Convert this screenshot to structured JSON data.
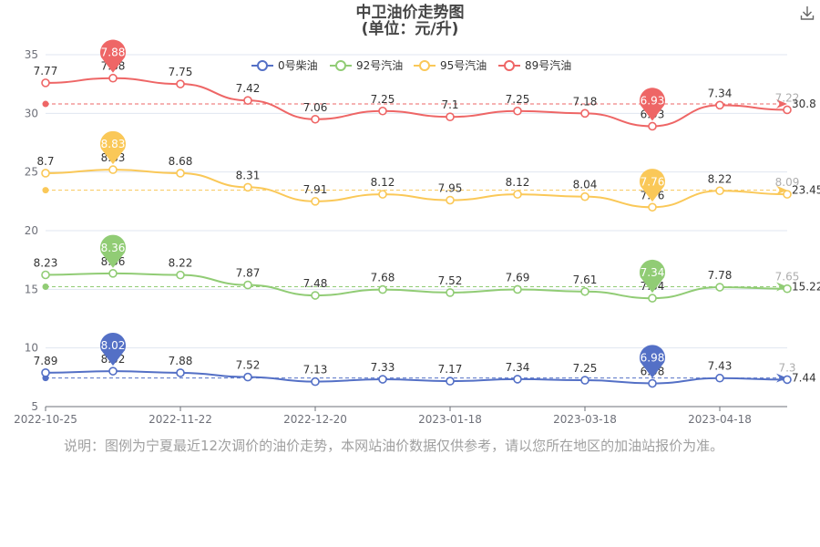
{
  "header": {
    "title": "中卫油价走势图",
    "subtitle": "(单位：元/升)"
  },
  "footer": {
    "note": "说明：图例为宁夏最近12次调价的油价走势，本网站油价数据仅供参考，请以您所在地区的加油站报价为准。"
  },
  "toolbar": {
    "download_icon": "download-icon"
  },
  "colors": {
    "series": [
      "#5470c6",
      "#91cc75",
      "#fac858",
      "#ee6666"
    ],
    "axis": "#6e7079",
    "grid": "#e0e6f1",
    "note": "#a0a0a0"
  },
  "chart_data": {
    "type": "line",
    "title": "中卫油价走势图",
    "subtitle": "(单位：元/升)",
    "xlabel": "",
    "ylabel": "",
    "ylim": [
      5,
      35
    ],
    "yticks": [
      "5",
      "10",
      "15",
      "20",
      "25",
      "30",
      "35"
    ],
    "xtick_labels": [
      {
        "index": 0,
        "label": "2022-10-25"
      },
      {
        "index": 2,
        "label": "2022-11-22"
      },
      {
        "index": 4,
        "label": "2022-12-20"
      },
      {
        "index": 6,
        "label": "2023-01-18"
      },
      {
        "index": 8,
        "label": "2023-03-18"
      },
      {
        "index": 10,
        "label": "2023-04-18"
      }
    ],
    "legend_position": "top",
    "grid": true,
    "series": [
      {
        "name": "0号柴油",
        "color": "#5470c6",
        "labels": [
          7.89,
          8.02,
          7.88,
          7.52,
          7.13,
          7.33,
          7.17,
          7.34,
          7.25,
          6.98,
          7.43,
          7.3
        ],
        "values": [
          7.89,
          8.02,
          7.88,
          7.52,
          7.13,
          7.33,
          7.17,
          7.34,
          7.25,
          6.98,
          7.43,
          7.3
        ],
        "max": {
          "index": 1,
          "label": "8.02"
        },
        "min": {
          "index": 9,
          "label": "6.98"
        },
        "average": {
          "label": "7.44",
          "value": 7.44
        }
      },
      {
        "name": "92号汽油",
        "color": "#91cc75",
        "labels": [
          8.23,
          8.36,
          8.22,
          7.87,
          7.48,
          7.68,
          7.52,
          7.69,
          7.61,
          7.34,
          7.78,
          7.65
        ],
        "values": [
          16.23,
          16.36,
          16.22,
          15.37,
          14.48,
          14.98,
          14.72,
          14.99,
          14.81,
          14.24,
          15.18,
          15.05
        ],
        "max": {
          "index": 1,
          "label": "8.36"
        },
        "min": {
          "index": 9,
          "label": "7.34"
        },
        "average": {
          "label": "15.22",
          "value": 15.22
        }
      },
      {
        "name": "95号汽油",
        "color": "#fac858",
        "labels": [
          8.7,
          8.83,
          8.68,
          8.31,
          7.91,
          8.12,
          7.95,
          8.12,
          8.04,
          7.76,
          8.22,
          8.09
        ],
        "values": [
          24.9,
          25.2,
          24.9,
          23.7,
          22.5,
          23.1,
          22.6,
          23.1,
          22.9,
          22.0,
          23.4,
          23.1
        ],
        "max": {
          "index": 1,
          "label": "8.83"
        },
        "min": {
          "index": 9,
          "label": "7.76"
        },
        "average": {
          "label": "23.45",
          "value": 23.45
        }
      },
      {
        "name": "89号汽油",
        "color": "#ee6666",
        "labels": [
          7.77,
          7.88,
          7.75,
          7.42,
          7.06,
          7.25,
          7.1,
          7.25,
          7.18,
          6.93,
          7.34,
          7.22
        ],
        "values": [
          32.6,
          33.0,
          32.5,
          31.1,
          29.5,
          30.2,
          29.7,
          30.2,
          30.0,
          28.9,
          30.7,
          30.3
        ],
        "max": {
          "index": 1,
          "label": "7.88"
        },
        "min": {
          "index": 9,
          "label": "6.93"
        },
        "average": {
          "label": "30.8",
          "value": 30.8
        }
      }
    ]
  }
}
